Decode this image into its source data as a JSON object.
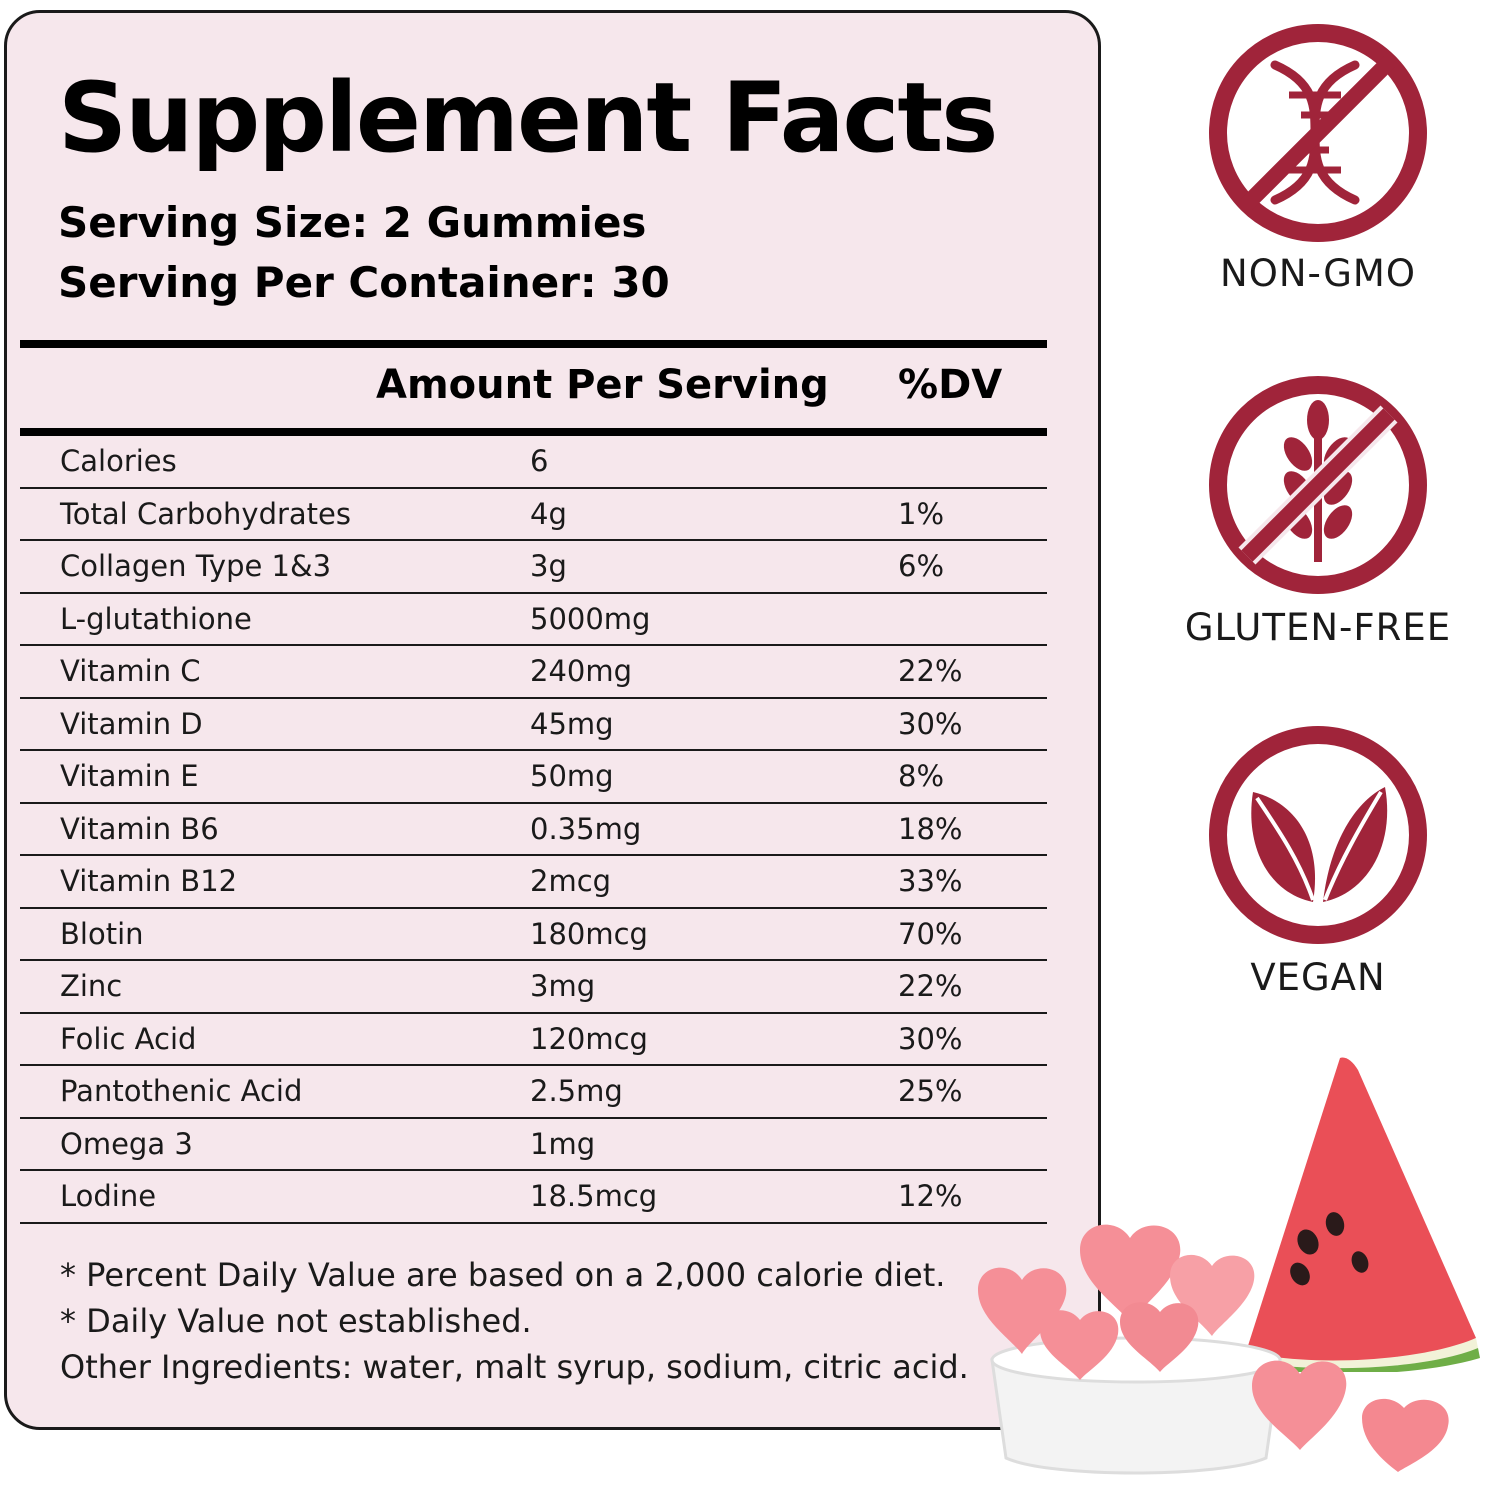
{
  "title": "Supplement Facts",
  "serving_size": "Serving Size: 2 Gummies",
  "servings_per_container": "Serving Per Container: 30",
  "table": {
    "header_amount": "Amount Per Serving",
    "header_dv": "%DV",
    "rows": [
      {
        "name": "Calories",
        "amount": "6",
        "dv": ""
      },
      {
        "name": "Total Carbohydrates",
        "amount": "4g",
        "dv": "1%"
      },
      {
        "name": "Collagen Type 1&3",
        "amount": "3g",
        "dv": "6%"
      },
      {
        "name": "L-glutathione",
        "amount": "5000mg",
        "dv": ""
      },
      {
        "name": "Vitamin C",
        "amount": "240mg",
        "dv": "22%"
      },
      {
        "name": "Vitamin D",
        "amount": "45mg",
        "dv": "30%"
      },
      {
        "name": "Vitamin E",
        "amount": "50mg",
        "dv": "8%"
      },
      {
        "name": "Vitamin B6",
        "amount": "0.35mg",
        "dv": "18%"
      },
      {
        "name": "Vitamin B12",
        "amount": "2mcg",
        "dv": "33%"
      },
      {
        "name": "Blotin",
        "amount": "180mcg",
        "dv": "70%"
      },
      {
        "name": "Zinc",
        "amount": "3mg",
        "dv": "22%"
      },
      {
        "name": "Folic Acid",
        "amount": "120mcg",
        "dv": "30%"
      },
      {
        "name": "Pantothenic Acid",
        "amount": "2.5mg",
        "dv": "25%"
      },
      {
        "name": "Omega 3",
        "amount": "1mg",
        "dv": ""
      },
      {
        "name": "Lodine",
        "amount": "18.5mcg",
        "dv": "12%"
      }
    ]
  },
  "footnotes": {
    "line1": "* Percent Daily Value are based on a 2,000 calorie diet.",
    "line2": "* Daily Value not established.",
    "line3": "Other Ingredients: water, malt syrup, sodium, citric acid."
  },
  "badges": {
    "non_gmo": {
      "label": "NON-GMO",
      "icon": "no-dna-icon"
    },
    "gluten_free": {
      "label": "GLUTEN-FREE",
      "icon": "no-wheat-icon"
    },
    "vegan": {
      "label": "VEGAN",
      "icon": "leaves-icon"
    }
  },
  "colors": {
    "panel_bg": "#f6e7ec",
    "badge": "#a0243a",
    "gummy": "#f58f97",
    "watermelon_flesh": "#ea4f57",
    "watermelon_rind": "#6fae47"
  }
}
